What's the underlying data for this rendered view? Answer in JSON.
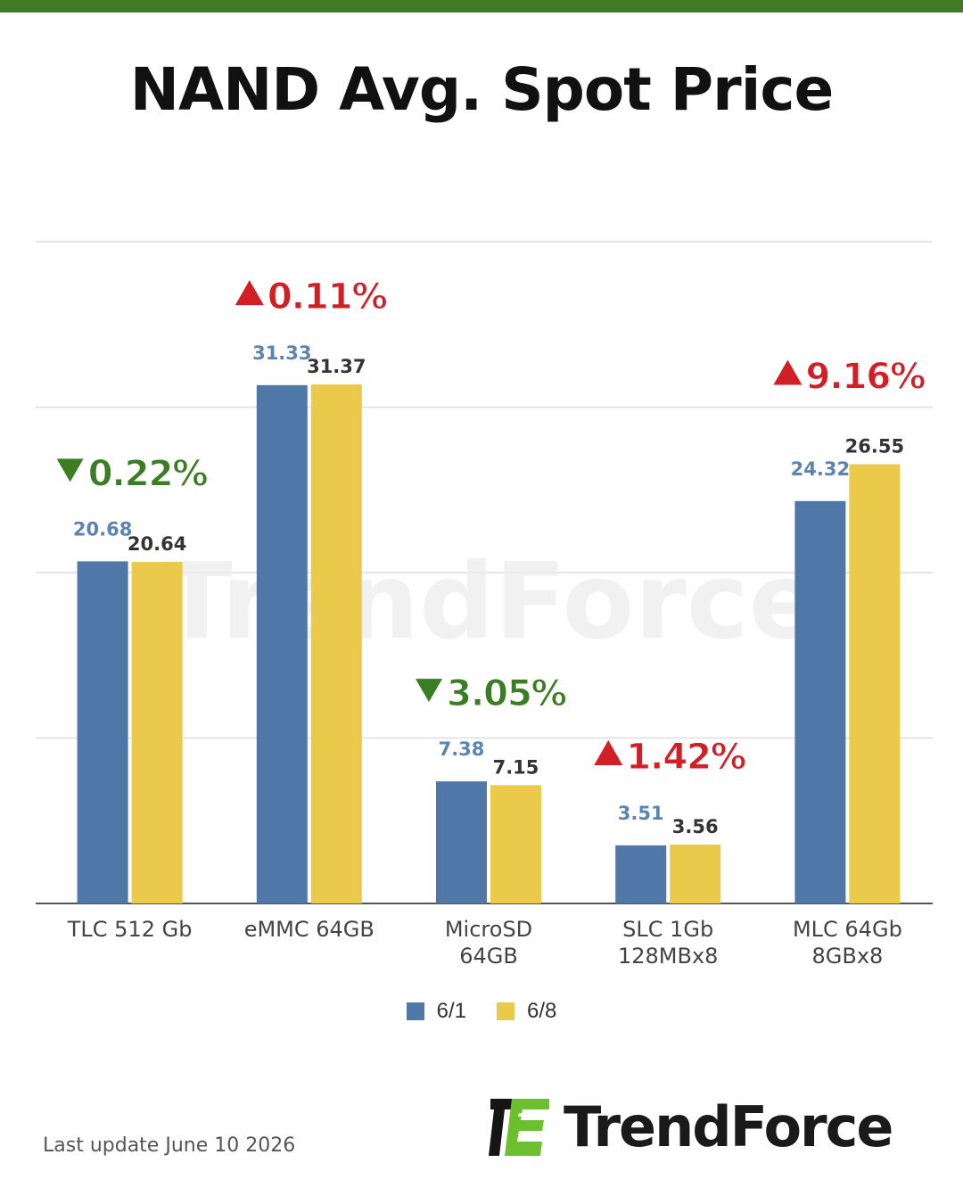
{
  "header": {
    "title": "NAND Avg. Spot Price"
  },
  "colors": {
    "series_1": "#4f78a8",
    "series_2": "#eac94b",
    "up": "#d21f26",
    "down": "#3b7d22",
    "accent_bar": "#3f7a24"
  },
  "chart_data": {
    "type": "bar",
    "title": "NAND Avg. Spot Price",
    "categories": [
      "TLC 512 Gb",
      "eMMC 64GB",
      "MicroSD 64GB",
      "SLC 1Gb 128MBx8",
      "MLC 64Gb 8GBx8"
    ],
    "category_lines": [
      [
        "TLC 512 Gb"
      ],
      [
        "eMMC 64GB"
      ],
      [
        "MicroSD",
        "64GB"
      ],
      [
        "SLC 1Gb",
        "128MBx8"
      ],
      [
        "MLC 64Gb",
        "8GBx8"
      ]
    ],
    "series": [
      {
        "name": "6/1",
        "values": [
          20.68,
          31.33,
          7.38,
          3.51,
          24.32
        ]
      },
      {
        "name": "6/8",
        "values": [
          20.64,
          31.37,
          7.15,
          3.56,
          26.55
        ]
      }
    ],
    "changes": [
      {
        "direction": "down",
        "text": "0.22%"
      },
      {
        "direction": "up",
        "text": "0.11%"
      },
      {
        "direction": "down",
        "text": "3.05%"
      },
      {
        "direction": "up",
        "text": "1.42%"
      },
      {
        "direction": "up",
        "text": "9.16%"
      }
    ],
    "ylim": [
      0,
      40
    ],
    "grid": true,
    "legend_position": "bottom-center",
    "xlabel": "",
    "ylabel": ""
  },
  "legend": {
    "items": [
      "6/1",
      "6/8"
    ]
  },
  "footer": {
    "last_update": "Last update  June 10  2026"
  },
  "brand": {
    "name": "TrendForce",
    "watermark": "TrendForce"
  }
}
